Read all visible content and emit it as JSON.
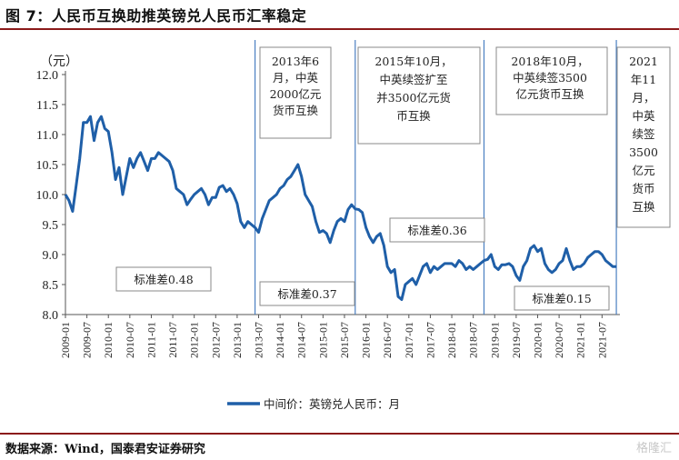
{
  "figure_title": "图 7：人民币互换助推英镑兑人民币汇率稳定",
  "source": "数据来源：Wind，国泰君安证券研究",
  "watermark": "格隆汇",
  "colors": {
    "line": "#1f5fa8",
    "accent": "#8b1a1a",
    "vline": "#4a7fc1"
  },
  "chart_data": {
    "type": "line",
    "ylabel": "（元）",
    "ylim": [
      8.0,
      12.0
    ],
    "yticks": [
      "12.0",
      "11.5",
      "11.0",
      "10.5",
      "10.0",
      "9.5",
      "9.0",
      "8.5",
      "8.0"
    ],
    "xticks": [
      "2009-01",
      "2009-07",
      "2010-01",
      "2010-07",
      "2011-01",
      "2011-07",
      "2012-01",
      "2012-07",
      "2013-01",
      "2013-07",
      "2014-01",
      "2014-07",
      "2015-01",
      "2015-07",
      "2016-01",
      "2016-07",
      "2017-01",
      "2017-07",
      "2018-01",
      "2018-07",
      "2019-01",
      "2019-07",
      "2020-01",
      "2020-07",
      "2021-01",
      "2021-07"
    ],
    "legend": "中间价：英镑兑人民币：月",
    "series": [
      {
        "name": "中间价：英镑兑人民币：月",
        "x": [
          "2009-01",
          "2009-02",
          "2009-03",
          "2009-04",
          "2009-05",
          "2009-06",
          "2009-07",
          "2009-08",
          "2009-09",
          "2009-10",
          "2009-11",
          "2009-12",
          "2010-01",
          "2010-02",
          "2010-03",
          "2010-04",
          "2010-05",
          "2010-06",
          "2010-07",
          "2010-08",
          "2010-09",
          "2010-10",
          "2010-11",
          "2010-12",
          "2011-01",
          "2011-02",
          "2011-03",
          "2011-04",
          "2011-05",
          "2011-06",
          "2011-07",
          "2011-08",
          "2011-09",
          "2011-10",
          "2011-11",
          "2011-12",
          "2012-01",
          "2012-02",
          "2012-03",
          "2012-04",
          "2012-05",
          "2012-06",
          "2012-07",
          "2012-08",
          "2012-09",
          "2012-10",
          "2012-11",
          "2012-12",
          "2013-01",
          "2013-02",
          "2013-03",
          "2013-04",
          "2013-05",
          "2013-06",
          "2013-07",
          "2013-08",
          "2013-09",
          "2013-10",
          "2013-11",
          "2013-12",
          "2014-01",
          "2014-02",
          "2014-03",
          "2014-04",
          "2014-05",
          "2014-06",
          "2014-07",
          "2014-08",
          "2014-09",
          "2014-10",
          "2014-11",
          "2014-12",
          "2015-01",
          "2015-02",
          "2015-03",
          "2015-04",
          "2015-05",
          "2015-06",
          "2015-07",
          "2015-08",
          "2015-09",
          "2015-10",
          "2015-11",
          "2015-12",
          "2016-01",
          "2016-02",
          "2016-03",
          "2016-04",
          "2016-05",
          "2016-06",
          "2016-07",
          "2016-08",
          "2016-09",
          "2016-10",
          "2016-11",
          "2016-12",
          "2017-01",
          "2017-02",
          "2017-03",
          "2017-04",
          "2017-05",
          "2017-06",
          "2017-07",
          "2017-08",
          "2017-09",
          "2017-10",
          "2017-11",
          "2017-12",
          "2018-01",
          "2018-02",
          "2018-03",
          "2018-04",
          "2018-05",
          "2018-06",
          "2018-07",
          "2018-08",
          "2018-09",
          "2018-10",
          "2018-11",
          "2018-12",
          "2019-01",
          "2019-02",
          "2019-03",
          "2019-04",
          "2019-05",
          "2019-06",
          "2019-07",
          "2019-08",
          "2019-09",
          "2019-10",
          "2019-11",
          "2019-12",
          "2020-01",
          "2020-02",
          "2020-03",
          "2020-04",
          "2020-05",
          "2020-06",
          "2020-07",
          "2020-08",
          "2020-09",
          "2020-10",
          "2020-11",
          "2020-12",
          "2021-01",
          "2021-02",
          "2021-03",
          "2021-04",
          "2021-05",
          "2021-06",
          "2021-07",
          "2021-08",
          "2021-09",
          "2021-10",
          "2021-11"
        ],
        "values": [
          10.0,
          9.9,
          9.72,
          10.15,
          10.6,
          11.2,
          11.2,
          11.3,
          10.9,
          11.2,
          11.3,
          11.1,
          11.05,
          10.7,
          10.25,
          10.45,
          10.0,
          10.3,
          10.6,
          10.45,
          10.6,
          10.7,
          10.55,
          10.4,
          10.6,
          10.6,
          10.7,
          10.65,
          10.6,
          10.55,
          10.4,
          10.1,
          10.05,
          10.0,
          9.83,
          9.92,
          10.0,
          10.05,
          10.1,
          10.0,
          9.83,
          9.95,
          9.95,
          10.12,
          10.15,
          10.05,
          10.1,
          10.0,
          9.85,
          9.55,
          9.45,
          9.55,
          9.5,
          9.45,
          9.37,
          9.6,
          9.75,
          9.9,
          9.95,
          10.0,
          10.1,
          10.15,
          10.25,
          10.3,
          10.4,
          10.5,
          10.3,
          10.0,
          9.9,
          9.8,
          9.55,
          9.37,
          9.4,
          9.35,
          9.2,
          9.4,
          9.55,
          9.6,
          9.55,
          9.75,
          9.83,
          9.76,
          9.75,
          9.7,
          9.45,
          9.3,
          9.2,
          9.3,
          9.35,
          9.15,
          8.8,
          8.7,
          8.75,
          8.3,
          8.25,
          8.5,
          8.55,
          8.6,
          8.5,
          8.65,
          8.8,
          8.85,
          8.7,
          8.8,
          8.75,
          8.8,
          8.85,
          8.85,
          8.85,
          8.8,
          8.9,
          8.85,
          8.75,
          8.8,
          8.75,
          8.8,
          8.85,
          8.9,
          8.92,
          9.0,
          8.8,
          8.75,
          8.83,
          8.83,
          8.85,
          8.8,
          8.65,
          8.57,
          8.8,
          8.9,
          9.1,
          9.15,
          9.05,
          9.1,
          8.85,
          8.75,
          8.7,
          8.75,
          8.85,
          8.9,
          9.1,
          8.9,
          8.75,
          8.8,
          8.8,
          8.85,
          8.95,
          9.0,
          9.05,
          9.05,
          9.0,
          8.9,
          8.85,
          8.8,
          8.8
        ]
      }
    ],
    "annotations": [
      {
        "x": "2013-06",
        "lines": [
          "2013年6",
          "月，中英",
          "2000亿元",
          "货币互换"
        ]
      },
      {
        "x": "2015-10",
        "lines": [
          "2015年10月，",
          "中英续签扩至",
          "并3500亿元货",
          "币互换"
        ]
      },
      {
        "x": "2018-10",
        "lines": [
          "2018年10月，",
          "中英续签3500",
          "亿元货币互换"
        ]
      },
      {
        "x": "2021-11",
        "lines": [
          "2021",
          "年11",
          "月，",
          "中英",
          "续签",
          "3500",
          "亿元",
          "货币",
          "互换"
        ]
      }
    ],
    "std_labels": [
      "标准差0.48",
      "标准差0.37",
      "标准差0.36",
      "标准差0.15"
    ]
  }
}
